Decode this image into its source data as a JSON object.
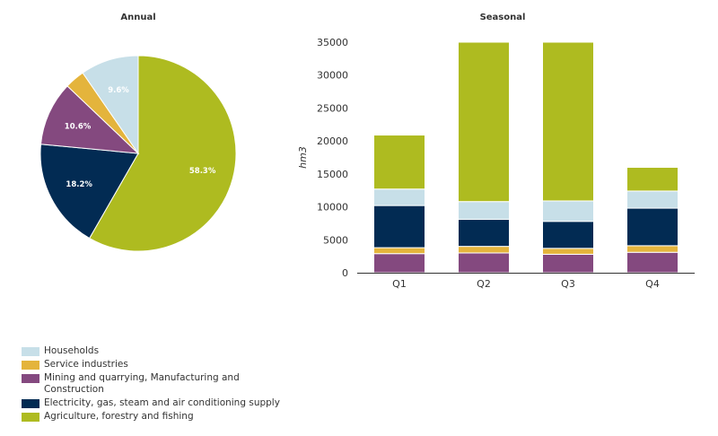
{
  "chart_data": [
    {
      "type": "pie",
      "title": "Annual",
      "slices": [
        {
          "label": "Agriculture, forestry and fishing",
          "value": 58.3,
          "display": "58.3%",
          "color": "#aebb20"
        },
        {
          "label": "Electricity, gas, steam and air conditioning supply",
          "value": 18.2,
          "display": "18.2%",
          "color": "#022b53"
        },
        {
          "label": "Mining and quarrying, Manufacturing and Construction",
          "value": 10.6,
          "display": "10.6%",
          "color": "#84497f"
        },
        {
          "label": "Service industries",
          "value": 3.3,
          "display": "",
          "color": "#e4b43c"
        },
        {
          "label": "Households",
          "value": 9.6,
          "display": "9.6%",
          "color": "#c7dfe8"
        }
      ],
      "unit": "%"
    },
    {
      "type": "bar",
      "stacked": true,
      "title": "Seasonal",
      "xlabel": "",
      "ylabel": "hm3",
      "categories": [
        "Q1",
        "Q2",
        "Q3",
        "Q4"
      ],
      "ylim": [
        0,
        35000
      ],
      "yticks": [
        0,
        5000,
        10000,
        15000,
        20000,
        25000,
        30000,
        35000
      ],
      "grid": false,
      "series": [
        {
          "name": "Mining and quarrying, Manufacturing and Construction",
          "color": "#84497f",
          "values": [
            2900,
            3000,
            2800,
            3100
          ]
        },
        {
          "name": "Service industries",
          "color": "#e4b43c",
          "values": [
            900,
            1000,
            900,
            1000
          ]
        },
        {
          "name": "Electricity, gas, steam and air conditioning supply",
          "color": "#022b53",
          "values": [
            6400,
            4100,
            4100,
            5700
          ]
        },
        {
          "name": "Households",
          "color": "#c7dfe8",
          "values": [
            2500,
            2700,
            3100,
            2600
          ]
        },
        {
          "name": "Agriculture, forestry and fishing",
          "color": "#aebb20",
          "values": [
            8200,
            24200,
            24100,
            3600
          ]
        }
      ]
    }
  ],
  "legend": {
    "position": "bottom-left",
    "items": [
      {
        "label": "Households",
        "color": "#c7dfe8"
      },
      {
        "label": "Service industries",
        "color": "#e4b43c"
      },
      {
        "label": "Mining and quarrying, Manufacturing and Construction",
        "color": "#84497f"
      },
      {
        "label": "Electricity, gas, steam and air conditioning supply",
        "color": "#022b53"
      },
      {
        "label": "Agriculture, forestry and fishing",
        "color": "#aebb20"
      }
    ]
  }
}
